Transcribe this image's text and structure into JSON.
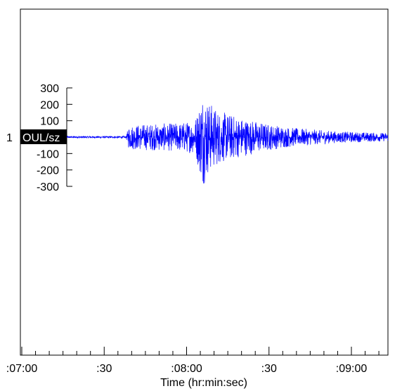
{
  "chart_data": {
    "type": "line",
    "title": "",
    "xlabel": "Time (hr:min:sec)",
    "ylabel": "",
    "trace_number": "1",
    "station_label": "OUL/sz",
    "x_ticks": [
      {
        "label": ":07:00",
        "seconds": 0
      },
      {
        "label": ":30",
        "seconds": 30
      },
      {
        "label": ":08:00",
        "seconds": 60
      },
      {
        "label": ":30",
        "seconds": 90
      },
      {
        "label": ":09:00",
        "seconds": 120
      }
    ],
    "x_range_seconds": [
      0,
      134
    ],
    "y_ticks": [
      300,
      200,
      100,
      0,
      -100,
      -200,
      -300
    ],
    "ylim": [
      -300,
      300
    ],
    "grid": false,
    "legend": "none",
    "series": [
      {
        "color": "#0000ff",
        "envelope": [
          {
            "t": 0,
            "amp": 6
          },
          {
            "t": 38,
            "amp": 7
          },
          {
            "t": 39,
            "amp": 75
          },
          {
            "t": 45,
            "amp": 80
          },
          {
            "t": 55,
            "amp": 85
          },
          {
            "t": 63,
            "amp": 100
          },
          {
            "t": 66,
            "amp": 300
          },
          {
            "t": 68,
            "amp": 220
          },
          {
            "t": 72,
            "amp": 160
          },
          {
            "t": 80,
            "amp": 120
          },
          {
            "t": 90,
            "amp": 80
          },
          {
            "t": 100,
            "amp": 55
          },
          {
            "t": 115,
            "amp": 35
          },
          {
            "t": 134,
            "amp": 25
          }
        ]
      }
    ]
  }
}
